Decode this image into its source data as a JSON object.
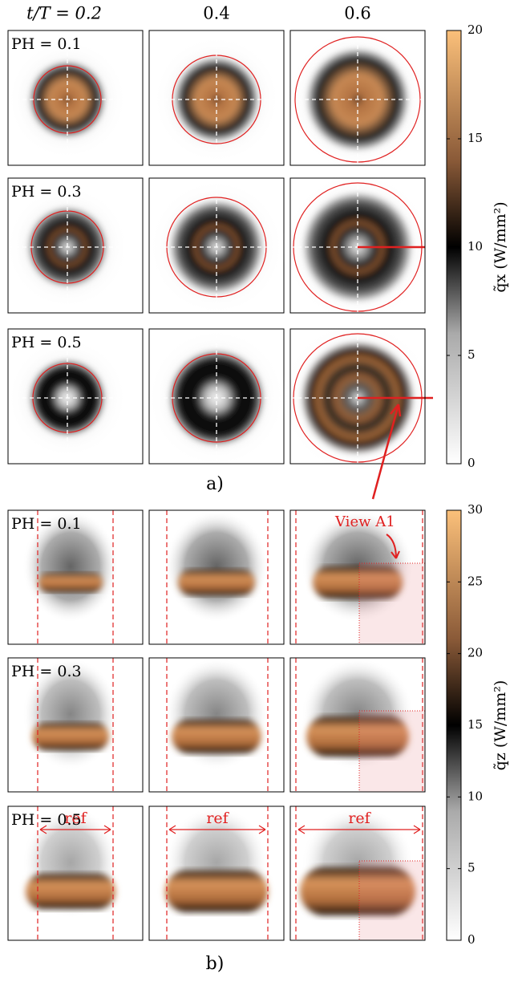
{
  "column_headers": [
    "t/T = 0.2",
    "0.4",
    "0.6"
  ],
  "panel_a": {
    "row_labels": [
      "PH = 0.1",
      "PH = 0.3",
      "PH = 0.5"
    ],
    "caption": "a)",
    "colorbar": {
      "label": "q̃x (W/mm²)",
      "lim": [
        0,
        20
      ],
      "ticks": [
        0,
        5,
        10,
        15,
        20
      ]
    }
  },
  "panel_b": {
    "row_labels": [
      "PH = 0.1",
      "PH = 0.3",
      "PH = 0.5"
    ],
    "caption": "b)",
    "annotation": "View A1",
    "ref_label": "ref",
    "colorbar": {
      "label": "q̃z (W/mm²)",
      "lim": [
        0,
        30
      ],
      "ticks": [
        0,
        5,
        10,
        15,
        20,
        25,
        30
      ]
    }
  }
}
